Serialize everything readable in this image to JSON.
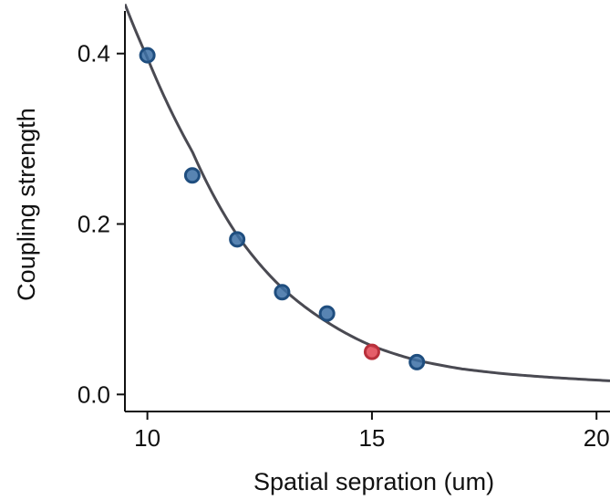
{
  "chart_data": {
    "type": "scatter",
    "title": "",
    "xlabel": "Spatial sepration (um)",
    "ylabel": "Coupling strength",
    "xlim": [
      9.5,
      20.3
    ],
    "ylim": [
      -0.02,
      0.45
    ],
    "xticks": [
      10,
      15,
      20
    ],
    "xtick_labels": [
      "10",
      "15",
      "20"
    ],
    "yticks": [
      0.0,
      0.2,
      0.4
    ],
    "ytick_labels": [
      "0.0",
      "0.2",
      "0.4"
    ],
    "grid": false,
    "series": [
      {
        "type": "scatter",
        "color": "#3b6fa5",
        "edge_color": "#1f4e7f",
        "points": [
          {
            "x": 10,
            "y": 0.398
          },
          {
            "x": 11,
            "y": 0.257
          },
          {
            "x": 12,
            "y": 0.182
          },
          {
            "x": 13,
            "y": 0.12
          },
          {
            "x": 14,
            "y": 0.095
          },
          {
            "x": 16,
            "y": 0.038
          }
        ]
      },
      {
        "type": "scatter",
        "color": "#e0424f",
        "edge_color": "#b8303b",
        "points": [
          {
            "x": 15,
            "y": 0.05
          }
        ]
      },
      {
        "type": "line",
        "color": "#4a4a52",
        "model": "exponential decay",
        "curve": [
          {
            "x": 9.5,
            "y": 0.458
          },
          {
            "x": 10,
            "y": 0.395
          },
          {
            "x": 11,
            "y": 0.285
          },
          {
            "x": 12,
            "y": 0.187
          },
          {
            "x": 13,
            "y": 0.125
          },
          {
            "x": 14,
            "y": 0.085
          },
          {
            "x": 15,
            "y": 0.057
          },
          {
            "x": 16,
            "y": 0.04
          },
          {
            "x": 17,
            "y": 0.03
          },
          {
            "x": 18,
            "y": 0.024
          },
          {
            "x": 19,
            "y": 0.02
          },
          {
            "x": 20.3,
            "y": 0.016
          }
        ]
      }
    ]
  }
}
